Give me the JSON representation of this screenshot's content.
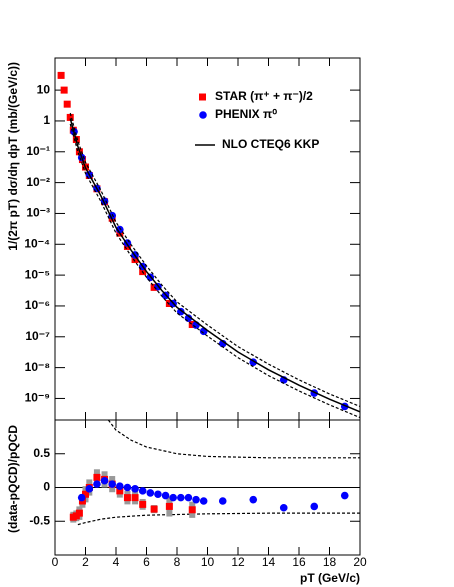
{
  "chart_data": [
    {
      "type": "scatter",
      "ylabel": "1/(2π pT) dσ/dη dpT (mb/(GeV/c))",
      "log_y": true,
      "xlim": [
        0,
        20
      ],
      "ylim": [
        2e-10,
        110
      ],
      "xticks": [
        0,
        2,
        4,
        6,
        8,
        10,
        12,
        14,
        16,
        18,
        20
      ],
      "show_xtick_labels": false,
      "yticks": [
        {
          "value": 1e-09,
          "label": "10⁻⁹"
        },
        {
          "value": 1e-08,
          "label": "10⁻⁸"
        },
        {
          "value": 1e-07,
          "label": "10⁻⁷"
        },
        {
          "value": 1e-06,
          "label": "10⁻⁶"
        },
        {
          "value": 1e-05,
          "label": "10⁻⁵"
        },
        {
          "value": 0.0001,
          "label": "10⁻⁴"
        },
        {
          "value": 0.001,
          "label": "10⁻³"
        },
        {
          "value": 0.01,
          "label": "10⁻²"
        },
        {
          "value": 0.1,
          "label": "10⁻¹"
        },
        1,
        10
      ],
      "legend": "top-right",
      "series": [
        {
          "name": "STAR (π⁺ + π⁻)/2",
          "color": "#ff0000",
          "marker": "square",
          "x": [
            0.4,
            0.6,
            0.8,
            1.0,
            1.2,
            1.4,
            1.6,
            1.8,
            2.0,
            2.25,
            2.75,
            3.25,
            3.75,
            4.25,
            4.75,
            5.25,
            5.75,
            6.5,
            7.5,
            9.0
          ],
          "values": [
            30,
            10,
            3.5,
            1.3,
            0.5,
            0.25,
            0.1,
            0.056,
            0.032,
            0.017,
            0.0063,
            0.0024,
            0.0007,
            0.00023,
            8.5e-05,
            3.2e-05,
            1.3e-05,
            4e-06,
            1.2e-06,
            2.5e-07
          ]
        },
        {
          "name": "PHENIX π⁰",
          "color": "#0000ff",
          "marker": "circle",
          "x": [
            1.25,
            1.75,
            2.25,
            2.75,
            3.25,
            3.75,
            4.25,
            4.75,
            5.25,
            5.75,
            6.25,
            6.75,
            7.25,
            7.75,
            8.25,
            8.75,
            9.25,
            9.75,
            11,
            13,
            15,
            17,
            19
          ],
          "values": [
            0.45,
            0.065,
            0.018,
            0.0065,
            0.0025,
            0.00085,
            0.0003,
            0.00011,
            4.5e-05,
            1.9e-05,
            8.5e-06,
            4.2e-06,
            2.2e-06,
            1.2e-06,
            6.5e-07,
            4e-07,
            2.4e-07,
            1.5e-07,
            6e-08,
            1.5e-08,
            4e-09,
            1.5e-09,
            5.5e-10
          ]
        },
        {
          "name": "NLO CTEQ6 KKP",
          "type": "line",
          "color": "#000000",
          "linestyle": "solid",
          "x": [
            1,
            1.5,
            2,
            3,
            4,
            5,
            6,
            7,
            8,
            10,
            12,
            14,
            16,
            18,
            20
          ],
          "values": [
            1.2,
            0.15,
            0.03,
            0.0038,
            0.00035,
            6.3e-05,
            1.3e-05,
            3.2e-06,
            9e-07,
            1.6e-07,
            3.2e-08,
            8.5e-09,
            2.7e-09,
            9.5e-10,
            3.7e-10
          ]
        },
        {
          "type": "line",
          "color": "#000000",
          "linestyle": "dashed",
          "x": [
            1,
            1.5,
            2,
            3,
            4,
            5,
            6,
            7,
            8,
            10,
            12,
            14,
            16,
            18,
            20
          ],
          "values": [
            1.8,
            0.22,
            0.045,
            0.0057,
            0.00052,
            9.5e-05,
            2e-05,
            4.8e-06,
            1.35e-06,
            2.4e-07,
            4.8e-08,
            1.3e-08,
            4e-09,
            1.4e-09,
            5.5e-10
          ]
        },
        {
          "type": "line",
          "color": "#000000",
          "linestyle": "dashed",
          "x": [
            1,
            1.5,
            2,
            3,
            4,
            5,
            6,
            7,
            8,
            10,
            12,
            14,
            16,
            18,
            20
          ],
          "values": [
            0.8,
            0.1,
            0.02,
            0.0025,
            0.00023,
            4.1e-05,
            8.5e-06,
            2.1e-06,
            5.9e-07,
            1.05e-07,
            2.1e-08,
            5.5e-09,
            1.75e-09,
            6.2e-10,
            2.4e-10
          ]
        }
      ]
    },
    {
      "type": "scatter",
      "ylabel": "(data-pQCD)/pQCD",
      "xlabel": "pT (GeV/c)",
      "log_y": false,
      "xlim": [
        0,
        20
      ],
      "ylim": [
        -1,
        1
      ],
      "xticks": [
        0,
        2,
        4,
        6,
        8,
        10,
        12,
        14,
        16,
        18,
        20
      ],
      "show_xtick_labels": true,
      "yticks": [
        -0.5,
        0,
        0.5
      ],
      "series": [
        {
          "type": "line",
          "color": "#000000",
          "linestyle": "dashed",
          "x": [
            3.5,
            4,
            5,
            6,
            8,
            10,
            14,
            20
          ],
          "values": [
            1.0,
            0.85,
            0.7,
            0.6,
            0.5,
            0.46,
            0.44,
            0.44
          ]
        },
        {
          "type": "line",
          "color": "#000000",
          "linestyle": "dashed",
          "x": [
            1.5,
            2,
            3,
            4,
            6,
            8,
            10,
            14,
            20
          ],
          "values": [
            -0.55,
            -0.52,
            -0.47,
            -0.44,
            -0.41,
            -0.4,
            -0.39,
            -0.38,
            -0.38
          ]
        },
        {
          "color": "#ff0000",
          "marker": "square",
          "error_color": "#999999",
          "x": [
            1.2,
            1.4,
            1.6,
            1.8,
            2.0,
            2.25,
            2.75,
            3.25,
            3.75,
            4.25,
            4.75,
            5.25,
            5.75,
            6.5,
            7.5,
            9.0
          ],
          "values": [
            -0.44,
            -0.42,
            -0.38,
            -0.2,
            -0.1,
            0.0,
            0.15,
            0.12,
            0.05,
            -0.05,
            -0.15,
            -0.15,
            -0.25,
            -0.32,
            -0.28,
            -0.33
          ],
          "errors": [
            0.08,
            0.08,
            0.1,
            0.1,
            0.12,
            0.12,
            0.12,
            0.12,
            0.12,
            0.1,
            0.1,
            0.1,
            0.08,
            0.06,
            0.15,
            0.12
          ]
        },
        {
          "color": "#0000ff",
          "marker": "circle",
          "x": [
            1.75,
            2.25,
            2.75,
            3.25,
            3.75,
            4.25,
            4.75,
            5.25,
            5.75,
            6.25,
            6.75,
            7.25,
            7.75,
            8.25,
            8.75,
            9.25,
            9.75,
            11,
            13,
            15,
            17,
            19
          ],
          "values": [
            -0.15,
            -0.02,
            0.05,
            0.1,
            0.05,
            0.02,
            0.0,
            -0.02,
            -0.05,
            -0.08,
            -0.1,
            -0.12,
            -0.15,
            -0.15,
            -0.15,
            -0.18,
            -0.2,
            -0.2,
            -0.18,
            -0.3,
            -0.28,
            -0.12
          ]
        }
      ]
    }
  ]
}
